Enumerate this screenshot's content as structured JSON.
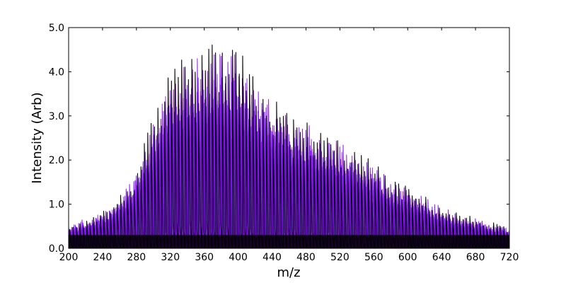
{
  "chart_data": {
    "type": "line",
    "title": "",
    "xlabel": "m/z",
    "ylabel": "Intensity (Arb)",
    "xlim": [
      200,
      720
    ],
    "ylim": [
      0,
      5
    ],
    "grid": false,
    "legend": "none",
    "x_ticks": [
      "200",
      "240",
      "280",
      "320",
      "360",
      "400",
      "440",
      "480",
      "520",
      "560",
      "600",
      "640",
      "680",
      "720"
    ],
    "y_ticks": [
      "0.0",
      "1.0",
      "2.0",
      "3.0",
      "4.0",
      "5.0"
    ],
    "peak_spacing_mz": 4,
    "envelope": {
      "mz": [
        200,
        220,
        240,
        260,
        280,
        300,
        320,
        340,
        360,
        380,
        400,
        420,
        440,
        460,
        480,
        500,
        520,
        540,
        560,
        580,
        600,
        620,
        640,
        660,
        680,
        700,
        720
      ],
      "intensity": [
        0.5,
        0.65,
        0.8,
        1.1,
        1.7,
        2.8,
        3.7,
        4.1,
        4.2,
        4.4,
        4.2,
        3.7,
        3.2,
        2.9,
        2.7,
        2.5,
        2.3,
        2.1,
        1.8,
        1.5,
        1.3,
        1.1,
        0.9,
        0.75,
        0.65,
        0.55,
        0.45
      ]
    },
    "series": [
      {
        "color": "#000000",
        "scale": 1.0
      },
      {
        "color": "#8000ff",
        "scale": 0.97
      },
      {
        "color": "#8a1ef0",
        "scale": 0.93
      },
      {
        "color": "#7a10f5",
        "scale": 0.88
      },
      {
        "color": "#9a30ff",
        "scale": 0.84
      },
      {
        "color": "#8000ff",
        "scale": 0.79
      },
      {
        "color": "#9a30ff",
        "scale": 0.74
      },
      {
        "color": "#7a10f5",
        "scale": 0.69
      },
      {
        "color": "#8a1ef0",
        "scale": 0.63
      },
      {
        "color": "#8000ff",
        "scale": 0.57
      }
    ],
    "colors": {
      "primary_trace": "#000000",
      "overlay_traces": "#8000ff"
    }
  }
}
